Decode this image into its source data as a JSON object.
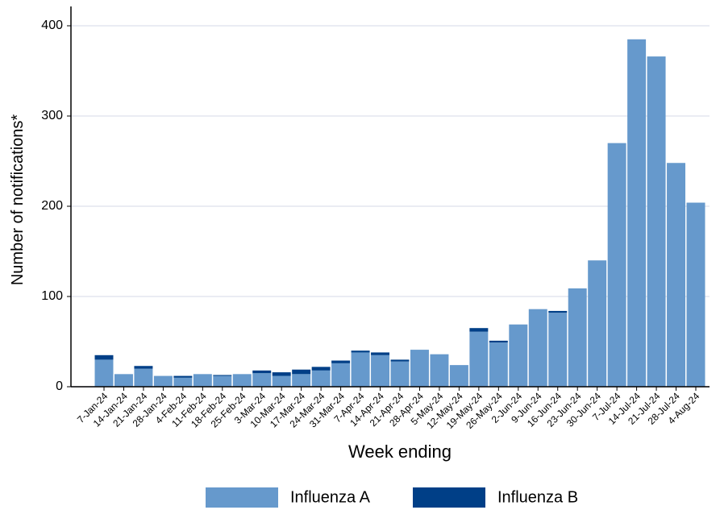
{
  "chart_data": {
    "type": "stacked_bar",
    "x_label": "Week ending",
    "y_label": "Number of notifications*",
    "categories": [
      "7-Jan-24",
      "14-Jan-24",
      "21-Jan-24",
      "28-Jan-24",
      "4-Feb-24",
      "11-Feb-24",
      "18-Feb-24",
      "25-Feb-24",
      "3-Mar-24",
      "10-Mar-24",
      "17-Mar-24",
      "24-Mar-24",
      "31-Mar-24",
      "7-Apr-24",
      "14-Apr-24",
      "21-Apr-24",
      "28-Apr-24",
      "5-May-24",
      "12-May-24",
      "19-May-24",
      "26-May-24",
      "2-Jun-24",
      "9-Jun-24",
      "16-Jun-24",
      "23-Jun-24",
      "30-Jun-24",
      "7-Jul-24",
      "14-Jul-24",
      "21-Jul-24",
      "28-Jul-24",
      "4-Aug-24"
    ],
    "series": [
      {
        "name": "Influenza A",
        "color": "#6699cc",
        "values": [
          30,
          14,
          20,
          12,
          10,
          14,
          12,
          14,
          15,
          12,
          14,
          18,
          26,
          38,
          35,
          28,
          41,
          36,
          24,
          61,
          49,
          69,
          86,
          82,
          109,
          140,
          270,
          385,
          366,
          248,
          204
        ]
      },
      {
        "name": "Influenza B",
        "color": "#003f87",
        "values": [
          5,
          0,
          3,
          0,
          2,
          0,
          1,
          0,
          3,
          4,
          5,
          4,
          3,
          2,
          3,
          2,
          0,
          0,
          0,
          4,
          2,
          0,
          0,
          2,
          0,
          0,
          0,
          0,
          0,
          0,
          0
        ]
      }
    ],
    "ylim": [
      0,
      400
    ],
    "yticks": [
      0,
      100,
      200,
      300,
      400
    ],
    "grid": true,
    "legend": "bottom"
  }
}
